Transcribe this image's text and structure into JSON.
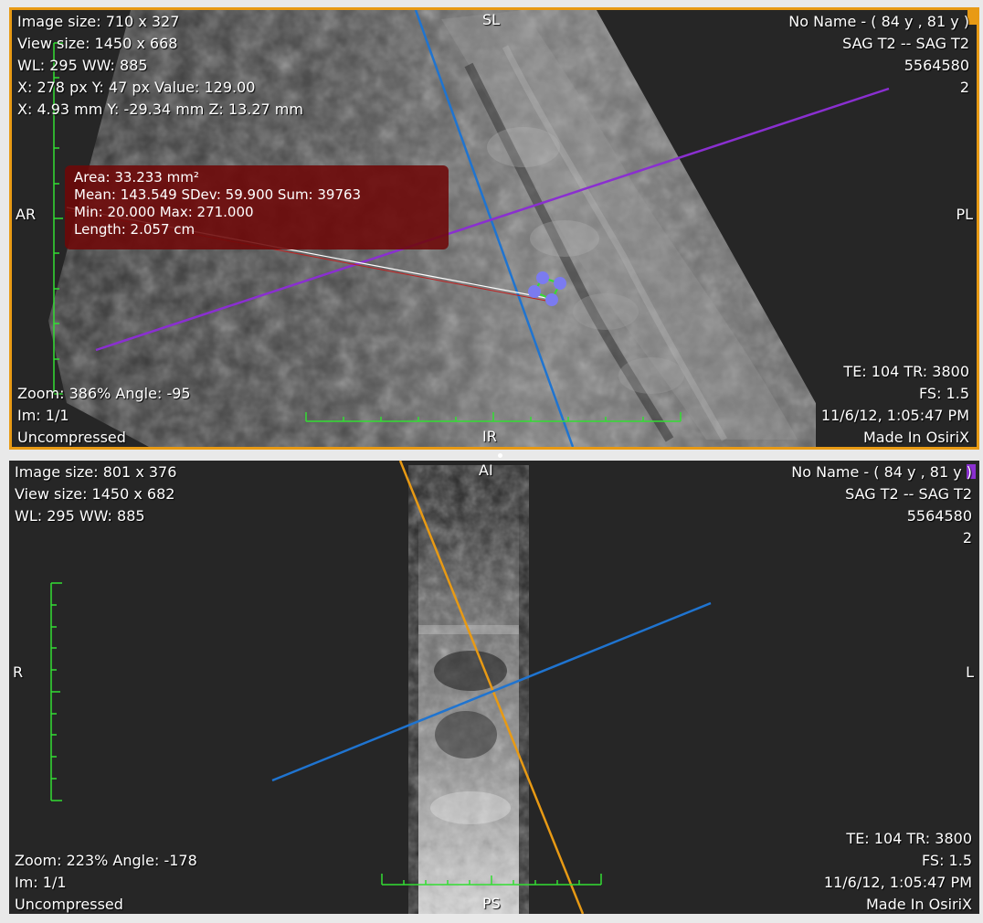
{
  "viewer_top": {
    "top_left": [
      "Image size: 710 x 327",
      "View size: 1450 x 668",
      "WL: 295 WW: 885",
      "X: 278 px Y: 47 px Value: 129.00",
      "X: 4.93 mm Y: -29.34 mm Z: 13.27 mm"
    ],
    "top_right": [
      "No Name - ( 84 y , 81 y )",
      "SAG T2 -- SAG T2",
      "5564580",
      "2"
    ],
    "bottom_left": [
      "Zoom: 386% Angle: -95",
      "Im: 1/1",
      "Uncompressed"
    ],
    "bottom_right": [
      "TE: 104 TR: 3800",
      "FS: 1.5",
      "11/6/12, 1:05:47 PM",
      "Made In OsiriX"
    ],
    "orient_top": "SL",
    "orient_left": "AR",
    "orient_right": "PL",
    "orient_bottom": "IR",
    "roi": {
      "area": "Area: 33.233 mm²",
      "mean": "Mean: 143.549   SDev: 59.900   Sum: 39763",
      "minmax": "Min: 20.000   Max: 271.000",
      "length": "Length: 2.057 cm"
    },
    "border_color": "#e89a14"
  },
  "viewer_bottom": {
    "top_left": [
      "Image size: 801 x 376",
      "View size: 1450 x 682",
      "WL: 295 WW: 885"
    ],
    "top_right": [
      "No Name - ( 84 y , 81 y )",
      "SAG T2 -- SAG T2",
      "5564580",
      "2"
    ],
    "bottom_left": [
      "Zoom: 223% Angle: -178",
      "Im: 1/1",
      "Uncompressed"
    ],
    "bottom_right": [
      "TE: 104 TR: 3800",
      "FS: 1.5",
      "11/6/12, 1:05:47 PM",
      "Made In OsiriX"
    ],
    "orient_top": "AI",
    "orient_left": "R",
    "orient_right": "L",
    "orient_bottom": "PS"
  },
  "colors": {
    "crosshair_orange": "#e89a14",
    "crosshair_blue": "#1f74d0",
    "crosshair_purple": "#8a2fd0",
    "scale_green": "#33dd33",
    "roi_handle": "#7b7bf0"
  }
}
